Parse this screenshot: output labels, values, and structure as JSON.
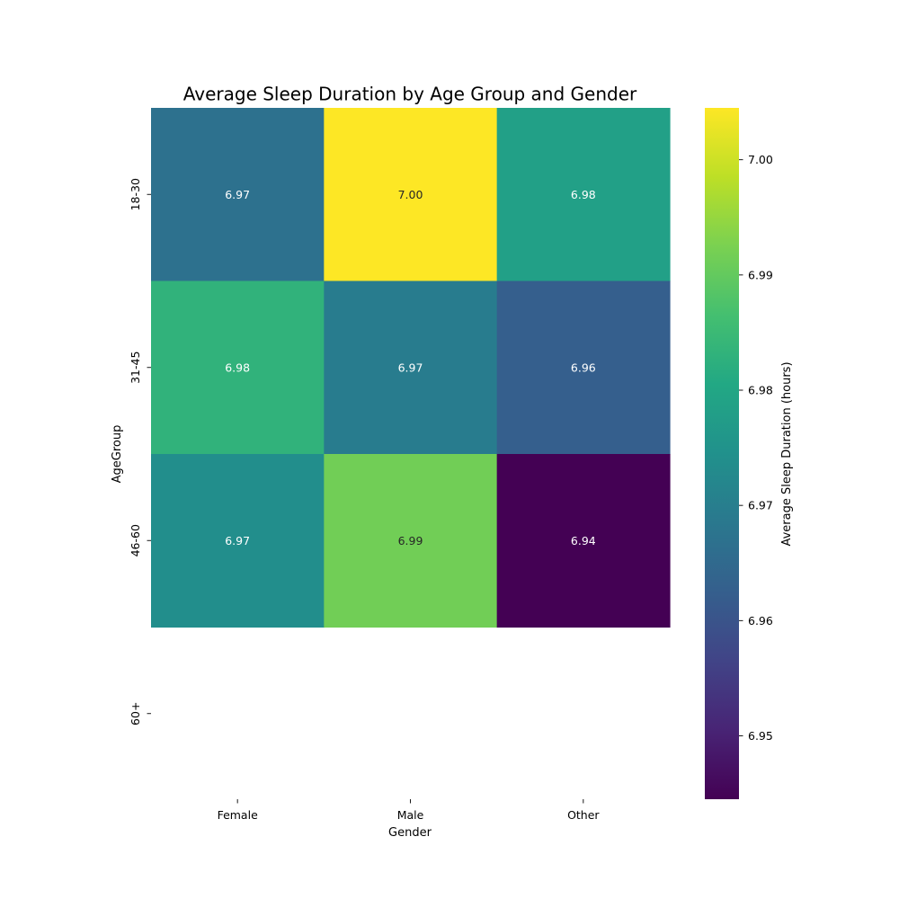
{
  "chart_data": {
    "type": "heatmap",
    "title": "Average Sleep Duration by Age Group and Gender",
    "xlabel": "Gender",
    "ylabel": "AgeGroup",
    "x_categories": [
      "Female",
      "Male",
      "Other"
    ],
    "y_categories": [
      "18-30",
      "31-45",
      "46-60",
      "60+"
    ],
    "values": [
      [
        6.9668,
        7.0045,
        6.9785
      ],
      [
        6.9832,
        6.9695,
        6.9625
      ],
      [
        6.9738,
        6.9915,
        6.9445
      ],
      [
        null,
        null,
        null
      ]
    ],
    "annotations": [
      [
        "6.97",
        "7.00",
        "6.98"
      ],
      [
        "6.98",
        "6.97",
        "6.96"
      ],
      [
        "6.97",
        "6.99",
        "6.94"
      ],
      [
        "",
        "",
        ""
      ]
    ],
    "colormap": "viridis",
    "colorbar": {
      "label": "Average Sleep Duration (hours)",
      "vmin": 6.9445,
      "vmax": 7.0045,
      "ticks": [
        6.95,
        6.96,
        6.97,
        6.98,
        6.99,
        7.0
      ],
      "tick_labels": [
        "6.95",
        "6.96",
        "6.97",
        "6.98",
        "6.99",
        "7.00"
      ]
    },
    "grid": false
  }
}
